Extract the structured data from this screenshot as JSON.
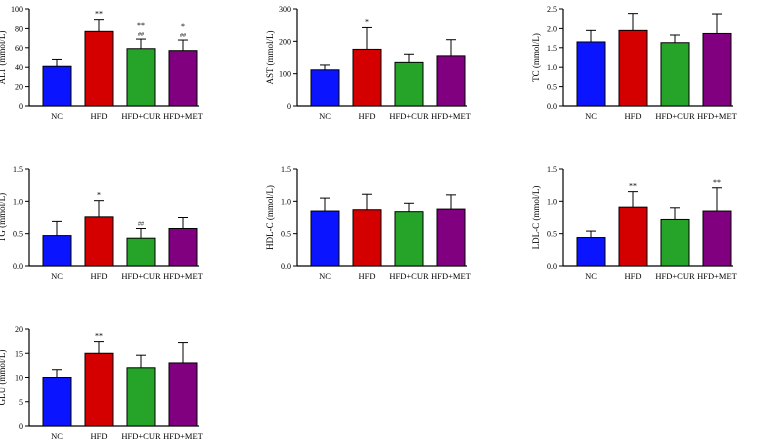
{
  "chart_data": [
    {
      "type": "bar",
      "ylabel": "ALT (mmol/L)",
      "categories": [
        "NC",
        "HFD",
        "HFD+CUR",
        "HFD+MET"
      ],
      "values": [
        41,
        77,
        59,
        57
      ],
      "errors": [
        7,
        12,
        10,
        11
      ],
      "annotations": [
        [
          "",
          ""
        ],
        [
          "**",
          ""
        ],
        [
          "**",
          "##"
        ],
        [
          "*",
          "##"
        ]
      ],
      "ylim": [
        0,
        100
      ],
      "yticks": [
        "0",
        "20",
        "40",
        "60",
        "80",
        "100"
      ],
      "colors": [
        "#0a14ff",
        "#d40000",
        "#26a329",
        "#800080"
      ]
    },
    {
      "type": "bar",
      "ylabel": "AST (mmol/L)",
      "categories": [
        "NC",
        "HFD",
        "HFD+CUR",
        "HFD+MET"
      ],
      "values": [
        112,
        175,
        135,
        155
      ],
      "errors": [
        15,
        68,
        25,
        50
      ],
      "annotations": [
        [
          "",
          ""
        ],
        [
          "*",
          ""
        ],
        [
          "",
          ""
        ],
        [
          "",
          ""
        ]
      ],
      "ylim": [
        0,
        300
      ],
      "yticks": [
        "0",
        "100",
        "200",
        "300"
      ],
      "colors": [
        "#0a14ff",
        "#d40000",
        "#26a329",
        "#800080"
      ]
    },
    {
      "type": "bar",
      "ylabel": "TC (mmol/L)",
      "categories": [
        "NC",
        "HFD",
        "HFD+CUR",
        "HFD+MET"
      ],
      "values": [
        1.65,
        1.95,
        1.63,
        1.87
      ],
      "errors": [
        0.3,
        0.43,
        0.2,
        0.5
      ],
      "annotations": [
        [
          "",
          ""
        ],
        [
          "",
          ""
        ],
        [
          "",
          ""
        ],
        [
          "",
          ""
        ]
      ],
      "ylim": [
        0,
        2.5
      ],
      "yticks": [
        "0.0",
        "0.5",
        "1.0",
        "1.5",
        "2.0",
        "2.5"
      ],
      "colors": [
        "#0a14ff",
        "#d40000",
        "#26a329",
        "#800080"
      ]
    },
    {
      "type": "bar",
      "ylabel": "TG (mmol/L)",
      "categories": [
        "NC",
        "HFD",
        "HFD+CUR",
        "HFD+MET"
      ],
      "values": [
        0.47,
        0.76,
        0.43,
        0.58
      ],
      "errors": [
        0.22,
        0.25,
        0.15,
        0.17
      ],
      "annotations": [
        [
          "",
          ""
        ],
        [
          "*",
          ""
        ],
        [
          "",
          "##"
        ],
        [
          "",
          ""
        ]
      ],
      "ylim": [
        0,
        1.5
      ],
      "yticks": [
        "0.0",
        "0.5",
        "1.0",
        "1.5"
      ],
      "colors": [
        "#0a14ff",
        "#d40000",
        "#26a329",
        "#800080"
      ]
    },
    {
      "type": "bar",
      "ylabel": "HDL-C (mmol/L)",
      "categories": [
        "NC",
        "HFD",
        "HFD+CUR",
        "HFD+MET"
      ],
      "values": [
        0.85,
        0.87,
        0.84,
        0.88
      ],
      "errors": [
        0.2,
        0.24,
        0.13,
        0.22
      ],
      "annotations": [
        [
          "",
          ""
        ],
        [
          "",
          ""
        ],
        [
          "",
          ""
        ],
        [
          "",
          ""
        ]
      ],
      "ylim": [
        0,
        1.5
      ],
      "yticks": [
        "0.0",
        "0.5",
        "1.0",
        "1.5"
      ],
      "colors": [
        "#0a14ff",
        "#d40000",
        "#26a329",
        "#800080"
      ]
    },
    {
      "type": "bar",
      "ylabel": "LDL-C (mmol/L)",
      "categories": [
        "NC",
        "HFD",
        "HFD+CUR",
        "HFD+MET"
      ],
      "values": [
        0.44,
        0.91,
        0.72,
        0.85
      ],
      "errors": [
        0.1,
        0.24,
        0.18,
        0.36
      ],
      "annotations": [
        [
          "",
          ""
        ],
        [
          "**",
          ""
        ],
        [
          "",
          ""
        ],
        [
          "**",
          ""
        ]
      ],
      "ylim": [
        0,
        1.5
      ],
      "yticks": [
        "0.0",
        "0.5",
        "1.0",
        "1.5"
      ],
      "colors": [
        "#0a14ff",
        "#d40000",
        "#26a329",
        "#800080"
      ]
    },
    {
      "type": "bar",
      "ylabel": "GLU (mmol/L)",
      "categories": [
        "NC",
        "HFD",
        "HFD+CUR",
        "HFD+MET"
      ],
      "values": [
        10,
        15,
        12,
        13
      ],
      "errors": [
        1.6,
        2.4,
        2.6,
        4.2
      ],
      "annotations": [
        [
          "",
          ""
        ],
        [
          "**",
          ""
        ],
        [
          "",
          ""
        ],
        [
          "",
          ""
        ]
      ],
      "ylim": [
        0,
        20
      ],
      "yticks": [
        "0",
        "5",
        "10",
        "15",
        "20"
      ],
      "colors": [
        "#0a14ff",
        "#d40000",
        "#26a329",
        "#800080"
      ]
    }
  ]
}
